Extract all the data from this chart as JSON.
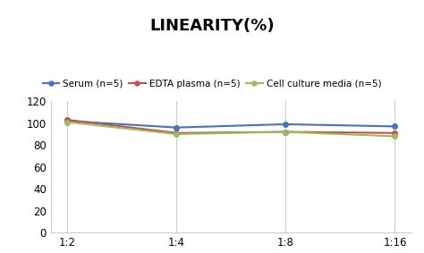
{
  "title": "LINEARITY(%)",
  "x_labels": [
    "1:2",
    "1:4",
    "1:8",
    "1:16"
  ],
  "series": [
    {
      "label": "Serum (n=5)",
      "values": [
        102,
        96,
        99,
        97
      ],
      "color": "#4472C4",
      "marker": "o"
    },
    {
      "label": "EDTA plasma (n=5)",
      "values": [
        103,
        91,
        92,
        91
      ],
      "color": "#C0504D",
      "marker": "o"
    },
    {
      "label": "Cell culture media (n=5)",
      "values": [
        101,
        90,
        92,
        88
      ],
      "color": "#9BBB59",
      "marker": "o"
    }
  ],
  "ylim": [
    0,
    120
  ],
  "yticks": [
    0,
    20,
    40,
    60,
    80,
    100,
    120
  ],
  "title_fontsize": 13,
  "legend_fontsize": 7.5,
  "tick_fontsize": 8.5,
  "background_color": "#ffffff",
  "grid_color": "#cccccc"
}
